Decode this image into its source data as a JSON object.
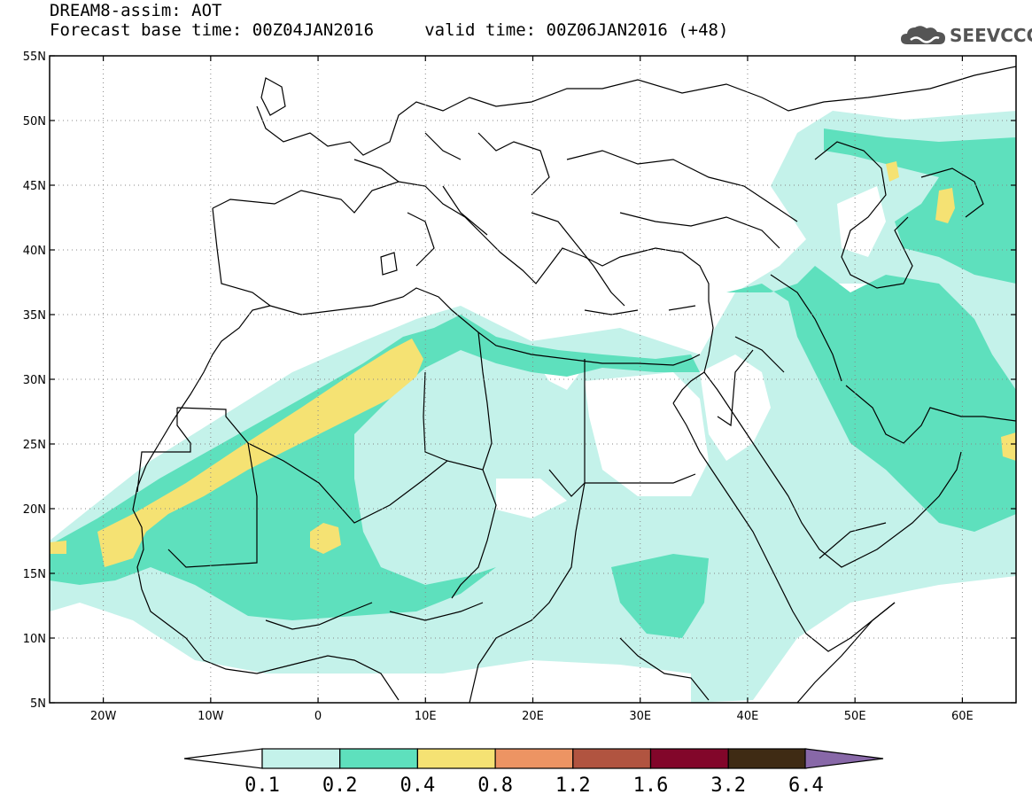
{
  "header": {
    "title_line1": "DREAM8-assim: AOT",
    "title_line2": "Forecast base time: 00Z04JAN2016     valid time: 00Z06JAN2016 (+48)",
    "logo_text": "SEEVCCC"
  },
  "map": {
    "lon_range": [
      -25,
      65
    ],
    "lat_range": [
      5,
      55
    ],
    "lat_ticks": [
      "55N",
      "50N",
      "45N",
      "40N",
      "35N",
      "30N",
      "25N",
      "20N",
      "15N",
      "10N",
      "5N"
    ],
    "lon_ticks": [
      "20W",
      "10W",
      "0",
      "10E",
      "20E",
      "30E",
      "40E",
      "50E",
      "60E"
    ],
    "grid": "dotted"
  },
  "colorbar": {
    "labels": [
      "0.1",
      "0.2",
      "0.4",
      "0.8",
      "1.2",
      "1.6",
      "3.2",
      "6.4"
    ],
    "colors": [
      "#c4f2ea",
      "#5ee0bd",
      "#f5e273",
      "#ed9463",
      "#b15440",
      "#82062a",
      "#3f2b14",
      "#8868a8"
    ]
  },
  "icons": {
    "logo": "cloud-logo-icon"
  }
}
